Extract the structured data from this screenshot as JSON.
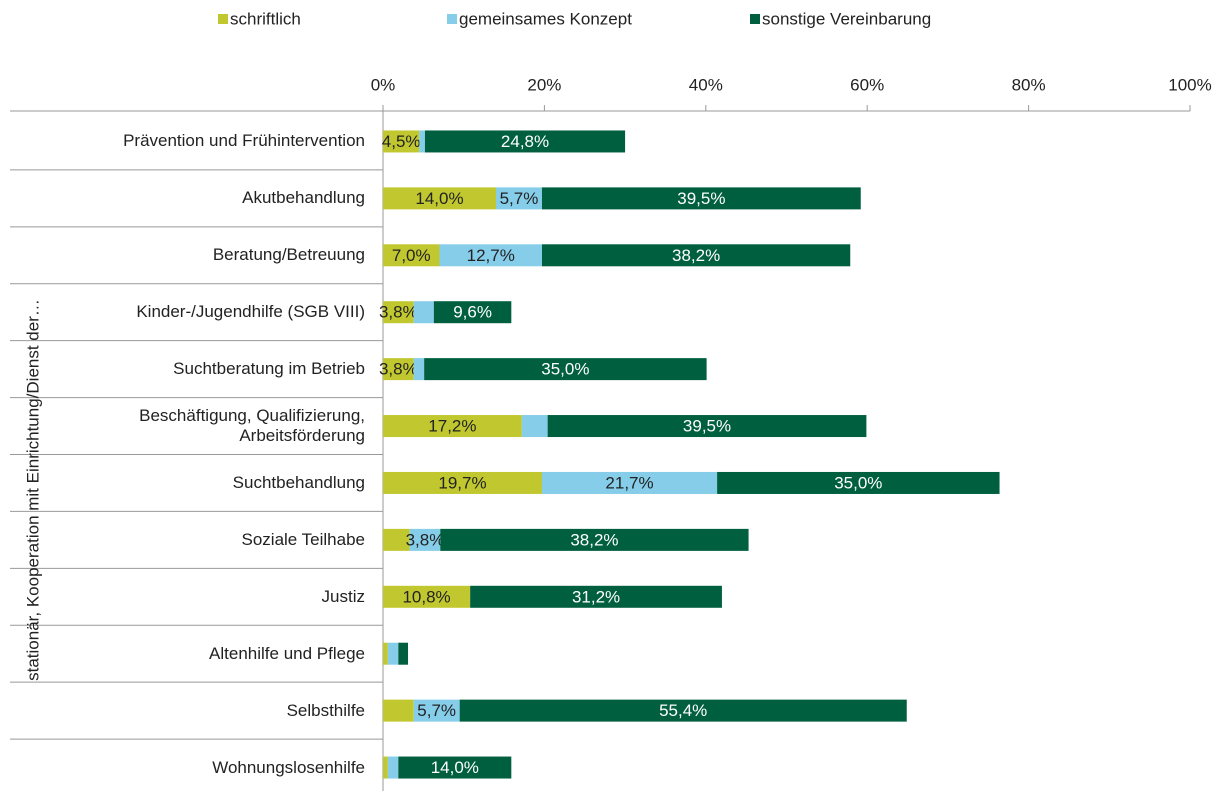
{
  "chart_data": {
    "type": "stacked-bar-horizontal",
    "y_label": "stationär, Kooperation mit Einrichtung/Dienst der…",
    "categories": [
      "Prävention und Frühintervention",
      "Akutbehandlung",
      "Beratung/Betreuung",
      "Kinder-/Jugendhilfe (SGB VIII)",
      "Suchtberatung im Betrieb",
      "Beschäftigung, Qualifizierung, Arbeitsförderung",
      "Suchtbehandlung",
      "Soziale Teilhabe",
      "Justiz",
      "Altenhilfe und Pflege",
      "Selbsthilfe",
      "Wohnungslosenhilfe"
    ],
    "series": [
      {
        "name": "schriftlich",
        "color": "#c1c82f",
        "label_color": "#222222",
        "values": [
          4.5,
          14.0,
          7.0,
          3.8,
          3.8,
          17.2,
          19.7,
          3.3,
          10.8,
          0.6,
          3.8,
          0.6
        ],
        "value_labels": [
          "4,5%",
          "14,0%",
          "7,0%",
          "3,8%",
          "3,8%",
          "17,2%",
          "19,7%",
          null,
          "10,8%",
          null,
          null,
          null
        ]
      },
      {
        "name": "gemeinsames Konzept",
        "color": "#86cdea",
        "label_color": "#222222",
        "values": [
          0.7,
          5.7,
          12.7,
          2.5,
          1.3,
          3.2,
          21.7,
          3.8,
          0,
          1.3,
          5.7,
          1.3
        ],
        "value_labels": [
          null,
          "5,7%",
          "12,7%",
          null,
          null,
          null,
          "21,7%",
          "3,8%",
          null,
          null,
          "5,7%",
          null
        ]
      },
      {
        "name": "sonstige Vereinbarung",
        "color": "#005f3f",
        "label_color": "#ffffff",
        "values": [
          24.8,
          39.5,
          38.2,
          9.6,
          35.0,
          39.5,
          35.0,
          38.2,
          31.2,
          1.2,
          55.4,
          14.0
        ],
        "value_labels": [
          "24,8%",
          "39,5%",
          "38,2%",
          "9,6%",
          "35,0%",
          "39,5%",
          "35,0%",
          "38,2%",
          "31,2%",
          null,
          "55,4%",
          "14,0%"
        ]
      }
    ],
    "xlim": [
      0,
      100
    ],
    "xticks": [
      {
        "value": 0,
        "label": "0%"
      },
      {
        "value": 20,
        "label": "20%"
      },
      {
        "value": 40,
        "label": "40%"
      },
      {
        "value": 60,
        "label": "60%"
      },
      {
        "value": 80,
        "label": "80%"
      },
      {
        "value": 100,
        "label": "100%"
      }
    ],
    "legend": "top"
  }
}
